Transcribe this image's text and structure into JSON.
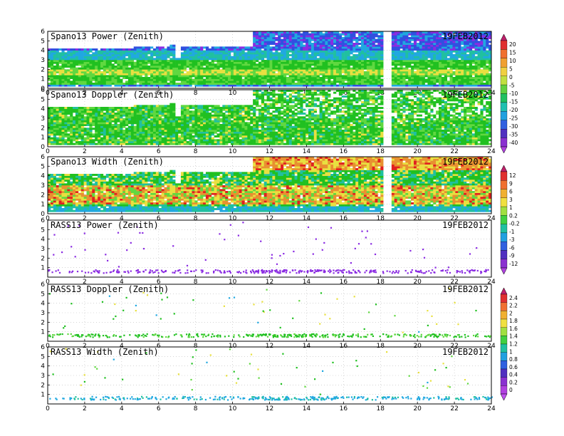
{
  "chart_data": [
    {
      "type": "heatmap",
      "title": "Spano13 Power (Zenith)",
      "date": "19FEB2012",
      "xlim": [
        0,
        24
      ],
      "ylim": [
        0,
        6
      ],
      "x_ticks": [
        "0",
        "2",
        "4",
        "6",
        "8",
        "10",
        "12",
        "14",
        "16",
        "18",
        "20",
        "22",
        "24"
      ],
      "y_ticks": [
        "0",
        "1",
        "2",
        "3",
        "4",
        "5",
        "6"
      ],
      "grid": true,
      "colorbar": [
        "20",
        "15",
        "10",
        "5",
        "0",
        "-5",
        "-10",
        "-15",
        "-20",
        "-25",
        "-30",
        "-35",
        "-40"
      ],
      "colorbar_id": 0
    },
    {
      "type": "heatmap",
      "title": "Spano13 Doppler (Zenith)",
      "date": "19FEB2012",
      "xlim": [
        0,
        24
      ],
      "ylim": [
        0,
        6
      ],
      "x_ticks": [
        "0",
        "2",
        "4",
        "6",
        "8",
        "10",
        "12",
        "14",
        "16",
        "18",
        "20",
        "22",
        "24"
      ],
      "y_ticks": [
        "0",
        "1",
        "2",
        "3",
        "4",
        "5",
        "6"
      ],
      "grid": true
    },
    {
      "type": "heatmap",
      "title": "Spano13 Width (Zenith)",
      "date": "19FEB2012",
      "xlim": [
        0,
        24
      ],
      "ylim": [
        0,
        6
      ],
      "x_ticks": [
        "0",
        "2",
        "4",
        "6",
        "8",
        "10",
        "12",
        "14",
        "16",
        "18",
        "20",
        "22",
        "24"
      ],
      "y_ticks": [
        "0",
        "1",
        "2",
        "3",
        "4",
        "5",
        "6"
      ],
      "grid": true,
      "colorbar": [
        "12",
        "9",
        "6",
        "3",
        "1",
        "0.2",
        "-0.2",
        "-1",
        "-3",
        "-6",
        "-9",
        "-12"
      ],
      "colorbar_id": 1
    },
    {
      "type": "scatter",
      "title": "RASS13 Power (Zenith)",
      "date": "19FEB2012",
      "xlim": [
        0,
        24
      ],
      "ylim": [
        0,
        6
      ],
      "x_ticks": [
        "0",
        "2",
        "4",
        "6",
        "8",
        "10",
        "12",
        "14",
        "16",
        "18",
        "20",
        "22",
        "24"
      ],
      "y_ticks": [
        "1",
        "2",
        "3",
        "4",
        "5",
        "6"
      ],
      "grid": true
    },
    {
      "type": "scatter",
      "title": "RASS13 Doppler (Zenith)",
      "date": "19FEB2012",
      "xlim": [
        0,
        24
      ],
      "ylim": [
        0,
        6
      ],
      "x_ticks": [
        "0",
        "2",
        "4",
        "6",
        "8",
        "10",
        "12",
        "14",
        "16",
        "18",
        "20",
        "22",
        "24"
      ],
      "y_ticks": [
        "1",
        "2",
        "3",
        "4",
        "5",
        "6"
      ],
      "grid": true,
      "colorbar": [
        "2.4",
        "2.2",
        "2",
        "1.8",
        "1.6",
        "1.4",
        "1.2",
        "1",
        "0.8",
        "0.6",
        "0.4",
        "0.2",
        "0"
      ],
      "colorbar_id": 2
    },
    {
      "type": "scatter",
      "title": "RASS13 Width (Zenith)",
      "date": "19FEB2012",
      "xlim": [
        0,
        24
      ],
      "ylim": [
        0,
        6
      ],
      "x_ticks": [
        "0",
        "2",
        "4",
        "6",
        "8",
        "10",
        "12",
        "14",
        "16",
        "18",
        "20",
        "22",
        "24"
      ],
      "y_ticks": [
        "1",
        "2",
        "3",
        "4",
        "5",
        "6"
      ],
      "grid": true
    }
  ],
  "colors": {
    "purple": "#8a2be2",
    "blue": "#3050e0",
    "cyan": "#20a8e0",
    "teal": "#20c0a0",
    "green": "#20c020",
    "lightgreen": "#60d840",
    "yellow": "#e8e040",
    "orange": "#e89030",
    "red": "#e02020"
  }
}
